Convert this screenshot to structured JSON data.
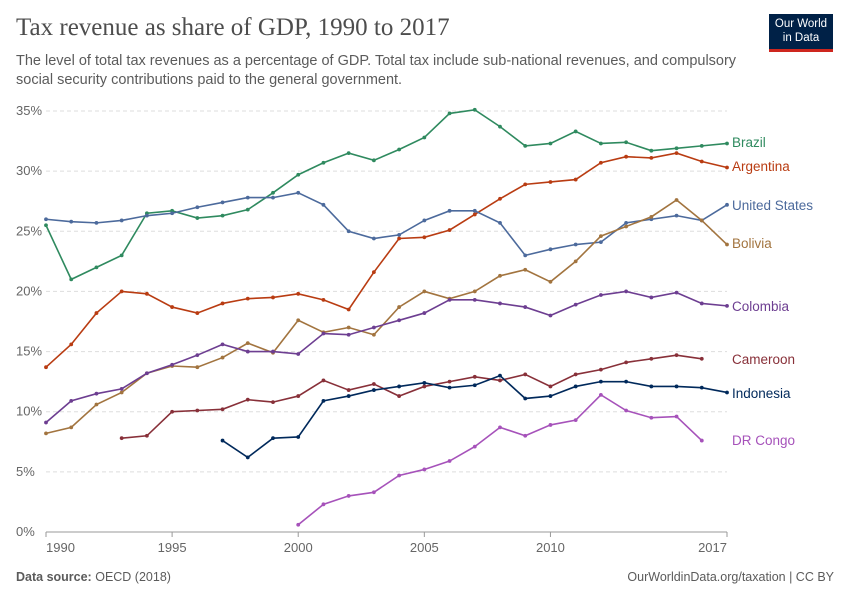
{
  "header": {
    "title": "Tax revenue as share of GDP, 1990 to 2017",
    "subtitle": "The level of total tax revenues as a percentage of GDP. Total tax include sub-national revenues, and compulsory social security contributions paid to the general government.",
    "logo_text": "Our World in Data"
  },
  "footer": {
    "source_label": "Data source:",
    "source": "OECD (2018)",
    "url": "OurWorldinData.org/taxation | CC BY"
  },
  "chart_data": {
    "type": "line",
    "title": "Tax revenue as share of GDP, 1990 to 2017",
    "xlim": [
      1990,
      2017
    ],
    "ylim": [
      0,
      35
    ],
    "x_ticks": [
      1990,
      1995,
      2000,
      2005,
      2010,
      2017
    ],
    "y_ticks": [
      0,
      5,
      10,
      15,
      20,
      25,
      30,
      35
    ],
    "y_tick_labels": [
      "0%",
      "5%",
      "10%",
      "15%",
      "20%",
      "25%",
      "30%",
      "35%"
    ],
    "grid": "horizontal dashed",
    "legend": "end-of-line labels (right)",
    "series": [
      {
        "name": "Brazil",
        "color": "#2f8a5f",
        "start": 1990,
        "values": [
          25.5,
          21.0,
          22.0,
          23.0,
          26.5,
          26.7,
          26.1,
          26.3,
          26.8,
          28.2,
          29.7,
          30.7,
          31.5,
          30.9,
          31.8,
          32.8,
          34.8,
          35.1,
          33.7,
          32.1,
          32.3,
          33.3,
          32.3,
          32.4,
          31.7,
          31.9,
          32.1,
          32.3
        ]
      },
      {
        "name": "Argentina",
        "color": "#b93c12",
        "start": 1990,
        "values": [
          13.7,
          15.6,
          18.2,
          20.0,
          19.8,
          18.7,
          18.2,
          19.0,
          19.4,
          19.5,
          19.8,
          19.3,
          18.5,
          21.6,
          24.4,
          24.5,
          25.1,
          26.4,
          27.7,
          28.9,
          29.1,
          29.3,
          30.7,
          31.2,
          31.1,
          31.5,
          30.8,
          30.3
        ]
      },
      {
        "name": "United States",
        "color": "#4c6a9c",
        "start": 1990,
        "values": [
          26.0,
          25.8,
          25.7,
          25.9,
          26.3,
          26.5,
          27.0,
          27.4,
          27.8,
          27.8,
          28.2,
          27.2,
          25.0,
          24.4,
          24.7,
          25.9,
          26.7,
          26.7,
          25.7,
          23.0,
          23.5,
          23.9,
          24.1,
          25.7,
          26.0,
          26.3,
          25.9,
          27.2
        ]
      },
      {
        "name": "Bolivia",
        "color": "#a2743f",
        "start": 1990,
        "values": [
          8.2,
          8.7,
          10.6,
          11.6,
          13.2,
          13.8,
          13.7,
          14.5,
          15.7,
          14.9,
          17.6,
          16.6,
          17.0,
          16.4,
          18.7,
          20.0,
          19.4,
          20.0,
          21.3,
          21.8,
          20.8,
          22.5,
          24.6,
          25.4,
          26.2,
          27.6,
          25.9,
          23.9
        ]
      },
      {
        "name": "Colombia",
        "color": "#6d3e91",
        "start": 1990,
        "values": [
          9.1,
          10.9,
          11.5,
          11.9,
          13.2,
          13.9,
          14.7,
          15.6,
          15.0,
          15.0,
          14.8,
          16.5,
          16.4,
          17.0,
          17.6,
          18.2,
          19.3,
          19.3,
          19.0,
          18.7,
          18.0,
          18.9,
          19.7,
          20.0,
          19.5,
          19.9,
          19.0,
          18.8
        ]
      },
      {
        "name": "Cameroon",
        "color": "#883039",
        "start": 1993,
        "values": [
          7.8,
          8.0,
          10.0,
          10.1,
          10.2,
          11.0,
          10.8,
          11.3,
          12.6,
          11.8,
          12.3,
          11.3,
          12.1,
          12.5,
          12.9,
          12.6,
          13.1,
          12.1,
          13.1,
          13.5,
          14.1,
          14.4,
          14.7,
          14.4
        ]
      },
      {
        "name": "Indonesia",
        "color": "#00295b",
        "start": 1997,
        "values": [
          7.6,
          6.2,
          7.8,
          7.9,
          10.9,
          11.3,
          11.8,
          12.1,
          12.4,
          12.0,
          12.2,
          13.0,
          11.1,
          11.3,
          12.1,
          12.5,
          12.5,
          12.1,
          12.1,
          12.0,
          11.6
        ]
      },
      {
        "name": "DR Congo",
        "color": "#a652ba",
        "start": 2000,
        "values": [
          0.6,
          2.3,
          3.0,
          3.3,
          4.7,
          5.2,
          5.9,
          7.1,
          8.7,
          8.0,
          8.9,
          9.3,
          11.4,
          10.1,
          9.5,
          9.6,
          7.6
        ]
      }
    ]
  }
}
